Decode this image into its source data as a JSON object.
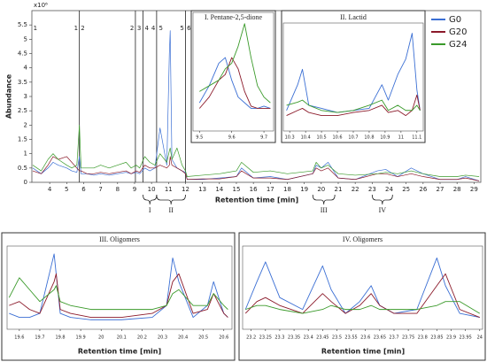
{
  "chart_data": [
    {
      "type": "line",
      "y_label": "Abundance",
      "x_label": "Retention time [min]",
      "y_scale": "x10⁶",
      "x": [
        3.0,
        3.5,
        3.9,
        4.2,
        4.5,
        5.0,
        5.3,
        5.6,
        5.75,
        5.85,
        6.2,
        6.6,
        7.0,
        7.5,
        8.0,
        8.5,
        8.8,
        9.1,
        9.3,
        9.6,
        9.9,
        10.2,
        10.5,
        10.9,
        11.05,
        11.1,
        11.2,
        11.5,
        11.8,
        12.0,
        12.1,
        13,
        14,
        15,
        15.3,
        16,
        17,
        18,
        19.5,
        19.7,
        20.0,
        20.4,
        21,
        22,
        23.3,
        23.8,
        24.5,
        25.3,
        26,
        27,
        28,
        28.5,
        29.3
      ],
      "series": [
        {
          "name": "G0",
          "color": "#3b6fd4",
          "values": [
            0.5,
            0.3,
            0.5,
            0.7,
            0.6,
            0.5,
            0.4,
            0.35,
            0.9,
            0.3,
            0.3,
            0.25,
            0.3,
            0.25,
            0.3,
            0.35,
            0.3,
            0.35,
            0.3,
            0.5,
            0.4,
            0.5,
            1.9,
            0.6,
            4.5,
            5.3,
            0.8,
            0.5,
            0.4,
            0.35,
            0.1,
            0.1,
            0.15,
            0.2,
            0.5,
            0.15,
            0.2,
            0.1,
            0.3,
            0.6,
            0.5,
            0.7,
            0.15,
            0.1,
            0.4,
            0.45,
            0.2,
            0.5,
            0.3,
            0.1,
            0.1,
            0.2,
            0.05
          ]
        },
        {
          "name": "G20",
          "color": "#8b1a2a",
          "values": [
            0.4,
            0.3,
            0.6,
            0.9,
            0.8,
            0.9,
            0.7,
            0.5,
            0.4,
            0.4,
            0.3,
            0.3,
            0.35,
            0.3,
            0.35,
            0.4,
            0.3,
            0.4,
            0.35,
            0.6,
            0.5,
            0.5,
            0.6,
            0.5,
            0.6,
            0.9,
            0.6,
            0.5,
            0.4,
            0.3,
            0.1,
            0.12,
            0.12,
            0.2,
            0.4,
            0.15,
            0.15,
            0.1,
            0.3,
            0.5,
            0.4,
            0.5,
            0.15,
            0.1,
            0.3,
            0.3,
            0.2,
            0.3,
            0.2,
            0.1,
            0.1,
            0.15,
            0.05
          ]
        },
        {
          "name": "G24",
          "color": "#3a9a2a",
          "values": [
            0.6,
            0.4,
            0.8,
            1.0,
            0.8,
            0.6,
            0.5,
            0.6,
            2.0,
            0.5,
            0.5,
            0.5,
            0.6,
            0.5,
            0.6,
            0.7,
            0.5,
            0.6,
            0.5,
            0.9,
            0.7,
            0.6,
            1.0,
            0.7,
            1.1,
            1.2,
            0.8,
            1.2,
            0.6,
            0.4,
            0.2,
            0.25,
            0.3,
            0.4,
            0.7,
            0.35,
            0.4,
            0.3,
            0.4,
            0.7,
            0.5,
            0.6,
            0.3,
            0.25,
            0.3,
            0.35,
            0.3,
            0.4,
            0.3,
            0.2,
            0.2,
            0.25,
            0.2
          ]
        }
      ],
      "xlim": [
        2.95,
        29.4
      ],
      "xticks": [
        4,
        5,
        6,
        7,
        8,
        9,
        10,
        11,
        12,
        13,
        14,
        15,
        16,
        17,
        18,
        19,
        20,
        21,
        22,
        23,
        24,
        25,
        26,
        27,
        28,
        29
      ],
      "ylim": [
        0,
        6
      ],
      "yticks": [
        0,
        0.5,
        1,
        1.5,
        2,
        2.5,
        3,
        3.5,
        4,
        4.5,
        5,
        5.5
      ],
      "region_lines": [
        5.75,
        9.05,
        9.5,
        10.3,
        12.0
      ],
      "region_labels": [
        {
          "x": 3.15,
          "label": "1"
        },
        {
          "x": 5.55,
          "label": "1"
        },
        {
          "x": 5.95,
          "label": "2"
        },
        {
          "x": 8.85,
          "label": "2"
        },
        {
          "x": 9.27,
          "label": "3"
        },
        {
          "x": 9.72,
          "label": "4"
        },
        {
          "x": 10.1,
          "label": "4"
        },
        {
          "x": 10.55,
          "label": "5"
        },
        {
          "x": 11.8,
          "label": "5"
        },
        {
          "x": 12.2,
          "label": "6"
        }
      ],
      "brackets": [
        {
          "label": "I",
          "x": [
            9.5,
            10.3
          ]
        },
        {
          "label": "II",
          "x": [
            10.3,
            12.0
          ]
        },
        {
          "label": "III",
          "x": [
            19.5,
            20.8
          ]
        },
        {
          "label": "IV",
          "x": [
            23.0,
            24.2
          ]
        }
      ],
      "legend": "upper right"
    },
    {
      "type": "line",
      "title": "I. Pentane-2,5-dione",
      "x": [
        9.5,
        9.53,
        9.56,
        9.58,
        9.6,
        9.62,
        9.64,
        9.66,
        9.68,
        9.7,
        9.72
      ],
      "series": [
        {
          "color": "#3b6fd4",
          "values": [
            0.25,
            0.4,
            0.6,
            0.65,
            0.45,
            0.3,
            0.25,
            0.2,
            0.2,
            0.22,
            0.2
          ]
        },
        {
          "color": "#8b1a2a",
          "values": [
            0.2,
            0.3,
            0.45,
            0.5,
            0.65,
            0.55,
            0.35,
            0.22,
            0.2,
            0.2,
            0.2
          ]
        },
        {
          "color": "#3a9a2a",
          "values": [
            0.35,
            0.4,
            0.45,
            0.55,
            0.6,
            0.75,
            0.95,
            0.65,
            0.4,
            0.3,
            0.25
          ]
        }
      ],
      "xlim": [
        9.48,
        9.73
      ],
      "xticks": [
        9.5,
        9.6,
        9.7
      ],
      "ylim": [
        0,
        1.05
      ]
    },
    {
      "type": "line",
      "title": "II. Lactid",
      "x": [
        10.28,
        10.35,
        10.38,
        10.42,
        10.5,
        10.6,
        10.7,
        10.8,
        10.88,
        10.92,
        10.98,
        11.03,
        11.07,
        11.1,
        11.12
      ],
      "series": [
        {
          "color": "#3b6fd4",
          "values": [
            0.2,
            0.45,
            0.6,
            0.25,
            0.22,
            0.18,
            0.2,
            0.22,
            0.45,
            0.3,
            0.55,
            0.7,
            0.95,
            0.4,
            0.2
          ]
        },
        {
          "color": "#8b1a2a",
          "values": [
            0.15,
            0.2,
            0.22,
            0.18,
            0.15,
            0.15,
            0.18,
            0.2,
            0.25,
            0.18,
            0.2,
            0.15,
            0.2,
            0.35,
            0.2
          ]
        },
        {
          "color": "#3a9a2a",
          "values": [
            0.25,
            0.28,
            0.3,
            0.25,
            0.2,
            0.18,
            0.2,
            0.25,
            0.3,
            0.2,
            0.25,
            0.2,
            0.2,
            0.25,
            0.2
          ]
        }
      ],
      "xlim": [
        10.26,
        11.14
      ],
      "xticks": [
        10.3,
        10.4,
        10.5,
        10.6,
        10.7,
        10.8,
        10.9,
        11,
        11.1
      ],
      "ylim": [
        0,
        1.05
      ]
    },
    {
      "type": "line",
      "title": "III. Oligomers",
      "x_label": "Retention time [min]",
      "x": [
        19.55,
        19.6,
        19.65,
        19.7,
        19.77,
        19.78,
        19.8,
        19.85,
        19.95,
        20.1,
        20.25,
        20.32,
        20.35,
        20.38,
        20.45,
        20.52,
        20.55,
        20.6,
        20.62
      ],
      "series": [
        {
          "color": "#3b6fd4",
          "values": [
            0.2,
            0.15,
            0.15,
            0.2,
            0.95,
            0.7,
            0.2,
            0.15,
            0.12,
            0.12,
            0.15,
            0.3,
            0.9,
            0.6,
            0.15,
            0.3,
            0.6,
            0.2,
            0.15
          ]
        },
        {
          "color": "#8b1a2a",
          "values": [
            0.3,
            0.35,
            0.25,
            0.2,
            0.6,
            0.7,
            0.25,
            0.2,
            0.15,
            0.15,
            0.2,
            0.3,
            0.6,
            0.7,
            0.2,
            0.25,
            0.45,
            0.2,
            0.15
          ]
        },
        {
          "color": "#3a9a2a",
          "values": [
            0.4,
            0.65,
            0.5,
            0.35,
            0.5,
            0.55,
            0.35,
            0.3,
            0.25,
            0.25,
            0.25,
            0.3,
            0.45,
            0.5,
            0.3,
            0.3,
            0.45,
            0.3,
            0.25
          ]
        }
      ],
      "xlim": [
        19.54,
        20.64
      ],
      "xticks": [
        19.6,
        19.7,
        19.8,
        19.9,
        20,
        20.1,
        20.2,
        20.3,
        20.4,
        20.5,
        20.6
      ],
      "ylim": [
        0,
        1.05
      ]
    },
    {
      "type": "line",
      "title": "IV. Oligomers",
      "x_label": "Retention time [min]",
      "x": [
        23.18,
        23.22,
        23.25,
        23.3,
        23.38,
        23.45,
        23.48,
        23.53,
        23.58,
        23.62,
        23.65,
        23.7,
        23.78,
        23.85,
        23.88,
        23.93,
        24.0
      ],
      "series": [
        {
          "color": "#3b6fd4",
          "values": [
            0.25,
            0.6,
            0.85,
            0.4,
            0.25,
            0.8,
            0.5,
            0.2,
            0.35,
            0.55,
            0.3,
            0.2,
            0.25,
            0.9,
            0.55,
            0.2,
            0.15
          ]
        },
        {
          "color": "#8b1a2a",
          "values": [
            0.2,
            0.35,
            0.4,
            0.3,
            0.2,
            0.45,
            0.35,
            0.2,
            0.3,
            0.45,
            0.3,
            0.2,
            0.2,
            0.55,
            0.7,
            0.25,
            0.15
          ]
        },
        {
          "color": "#3a9a2a",
          "values": [
            0.25,
            0.3,
            0.3,
            0.25,
            0.2,
            0.25,
            0.3,
            0.25,
            0.25,
            0.3,
            0.25,
            0.25,
            0.25,
            0.3,
            0.35,
            0.35,
            0.2
          ]
        }
      ],
      "xlim": [
        23.17,
        24.01
      ],
      "xticks": [
        23.2,
        23.25,
        23.3,
        23.35,
        23.4,
        23.45,
        23.5,
        23.55,
        23.6,
        23.65,
        23.7,
        23.75,
        23.8,
        23.85,
        23.9,
        23.95,
        24
      ],
      "ylim": [
        0,
        1.05
      ]
    }
  ]
}
